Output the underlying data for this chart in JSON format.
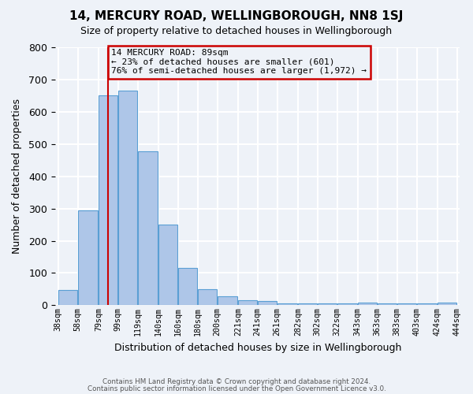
{
  "title": "14, MERCURY ROAD, WELLINGBOROUGH, NN8 1SJ",
  "subtitle": "Size of property relative to detached houses in Wellingborough",
  "xlabel": "Distribution of detached houses by size in Wellingborough",
  "ylabel": "Number of detached properties",
  "bin_edges": [
    38,
    58,
    79,
    99,
    119,
    140,
    160,
    180,
    200,
    221,
    241,
    261,
    282,
    302,
    322,
    343,
    363,
    383,
    403,
    424,
    444
  ],
  "bin_labels": [
    "38sqm",
    "58sqm",
    "79sqm",
    "99sqm",
    "119sqm",
    "140sqm",
    "160sqm",
    "180sqm",
    "200sqm",
    "221sqm",
    "241sqm",
    "261sqm",
    "282sqm",
    "302sqm",
    "322sqm",
    "343sqm",
    "363sqm",
    "383sqm",
    "403sqm",
    "424sqm",
    "444sqm"
  ],
  "bar_heights": [
    48,
    294,
    650,
    665,
    477,
    251,
    115,
    49,
    28,
    16,
    14,
    6,
    5,
    5,
    5,
    8,
    5,
    5,
    5,
    9
  ],
  "bar_color": "#aec6e8",
  "bar_edge_color": "#5a9fd4",
  "ylim": [
    0,
    800
  ],
  "yticks": [
    0,
    100,
    200,
    300,
    400,
    500,
    600,
    700,
    800
  ],
  "property_size": 89,
  "vline_color": "#cc0000",
  "annotation_line1": "14 MERCURY ROAD: 89sqm",
  "annotation_line2": "← 23% of detached houses are smaller (601)",
  "annotation_line3": "76% of semi-detached houses are larger (1,972) →",
  "annotation_box_color": "#cc0000",
  "footer_line1": "Contains HM Land Registry data © Crown copyright and database right 2024.",
  "footer_line2": "Contains public sector information licensed under the Open Government Licence v3.0.",
  "bg_color": "#eef2f8",
  "grid_color": "#ffffff"
}
